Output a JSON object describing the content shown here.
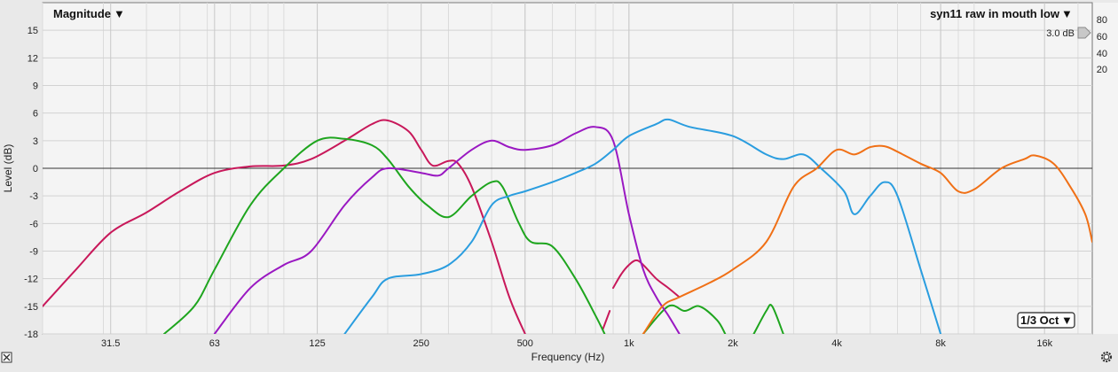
{
  "chart_data": {
    "type": "line",
    "title_left": "Magnitude",
    "title_right": "syn11 raw in mouth low",
    "offset_label": "3.0 dB",
    "smoothing_label": "1/3 Oct",
    "xlabel": "Frequency (Hz)",
    "ylabel": "Level (dB)",
    "x_scale": "log",
    "xlim": [
      20,
      22000
    ],
    "ylim": [
      -18,
      18
    ],
    "grid": true,
    "x_ticks": [
      31.5,
      63,
      125,
      250,
      500,
      1000,
      2000,
      4000,
      8000,
      16000
    ],
    "x_tick_labels": [
      "31.5",
      "63",
      "125",
      "250",
      "500",
      "1k",
      "2k",
      "4k",
      "8k",
      "16k"
    ],
    "y_ticks": [
      15,
      12,
      9,
      6,
      3,
      0,
      -3,
      -6,
      -9,
      -12,
      -15,
      -18
    ],
    "right_scale_ticks": [
      "80",
      "60",
      "40",
      "20"
    ],
    "colors": {
      "crimson": "#c8185a",
      "green": "#1ea51e",
      "purple": "#9a18c2",
      "blue": "#2a9ddf",
      "orange": "#f07016"
    },
    "series": [
      {
        "color_key": "crimson",
        "points": [
          [
            20,
            -15
          ],
          [
            25,
            -11
          ],
          [
            31.5,
            -7
          ],
          [
            40,
            -4.8
          ],
          [
            50,
            -2.5
          ],
          [
            63,
            -0.5
          ],
          [
            80,
            0.2
          ],
          [
            100,
            0.3
          ],
          [
            120,
            1
          ],
          [
            150,
            3
          ],
          [
            180,
            4.8
          ],
          [
            200,
            5.2
          ],
          [
            230,
            4
          ],
          [
            250,
            2
          ],
          [
            270,
            0.3
          ],
          [
            300,
            0.8
          ],
          [
            320,
            0.5
          ],
          [
            350,
            -2
          ],
          [
            400,
            -8
          ],
          [
            450,
            -14
          ],
          [
            500,
            -18
          ]
        ]
      },
      {
        "color_key": "crimson",
        "points": [
          [
            900,
            -13
          ],
          [
            950,
            -11.5
          ],
          [
            1000,
            -10.5
          ],
          [
            1050,
            -10
          ],
          [
            1100,
            -10.5
          ],
          [
            1200,
            -12
          ],
          [
            1300,
            -13
          ],
          [
            1400,
            -14
          ]
        ]
      },
      {
        "color_key": "crimson",
        "points": [
          [
            840,
            -17.5
          ],
          [
            880,
            -15.5
          ]
        ]
      },
      {
        "color_key": "green",
        "points": [
          [
            45,
            -18
          ],
          [
            55,
            -15
          ],
          [
            63,
            -11
          ],
          [
            80,
            -4
          ],
          [
            100,
            0
          ],
          [
            125,
            3
          ],
          [
            150,
            3.2
          ],
          [
            180,
            2.5
          ],
          [
            200,
            1
          ],
          [
            230,
            -2
          ],
          [
            260,
            -4
          ],
          [
            300,
            -5.3
          ],
          [
            350,
            -3
          ],
          [
            400,
            -1.5
          ],
          [
            430,
            -2
          ],
          [
            480,
            -6
          ],
          [
            520,
            -8
          ],
          [
            600,
            -8.5
          ],
          [
            700,
            -12
          ],
          [
            800,
            -16
          ],
          [
            850,
            -18
          ]
        ]
      },
      {
        "color_key": "green",
        "points": [
          [
            1100,
            -18
          ],
          [
            1300,
            -15
          ],
          [
            1450,
            -15.5
          ],
          [
            1600,
            -15
          ],
          [
            1800,
            -16.5
          ],
          [
            1900,
            -18
          ]
        ]
      },
      {
        "color_key": "green",
        "points": [
          [
            2300,
            -18
          ],
          [
            2500,
            -15.5
          ],
          [
            2600,
            -15
          ],
          [
            2800,
            -18
          ]
        ]
      },
      {
        "color_key": "purple",
        "points": [
          [
            63,
            -18
          ],
          [
            80,
            -13
          ],
          [
            100,
            -10.5
          ],
          [
            120,
            -9
          ],
          [
            150,
            -4
          ],
          [
            180,
            -1
          ],
          [
            200,
            0
          ],
          [
            250,
            -0.5
          ],
          [
            280,
            -0.8
          ],
          [
            300,
            0
          ],
          [
            350,
            2
          ],
          [
            400,
            3
          ],
          [
            450,
            2.3
          ],
          [
            500,
            2
          ],
          [
            600,
            2.5
          ],
          [
            700,
            3.8
          ],
          [
            800,
            4.5
          ],
          [
            900,
            3
          ],
          [
            1000,
            -5
          ],
          [
            1100,
            -11
          ],
          [
            1200,
            -14
          ],
          [
            1300,
            -16
          ],
          [
            1400,
            -18
          ]
        ]
      },
      {
        "color_key": "blue",
        "points": [
          [
            150,
            -18
          ],
          [
            180,
            -14
          ],
          [
            200,
            -12
          ],
          [
            250,
            -11.5
          ],
          [
            300,
            -10.5
          ],
          [
            350,
            -8
          ],
          [
            400,
            -4
          ],
          [
            450,
            -3
          ],
          [
            500,
            -2.5
          ],
          [
            600,
            -1.5
          ],
          [
            700,
            -0.5
          ],
          [
            800,
            0.5
          ],
          [
            900,
            2
          ],
          [
            1000,
            3.5
          ],
          [
            1200,
            4.8
          ],
          [
            1300,
            5.3
          ],
          [
            1500,
            4.5
          ],
          [
            2000,
            3.5
          ],
          [
            2500,
            1.5
          ],
          [
            2800,
            1
          ],
          [
            3200,
            1.5
          ],
          [
            3600,
            0
          ],
          [
            4200,
            -2.5
          ],
          [
            4500,
            -5
          ],
          [
            5000,
            -3
          ],
          [
            5500,
            -1.5
          ],
          [
            6000,
            -3
          ],
          [
            7000,
            -11
          ],
          [
            8000,
            -18
          ]
        ]
      },
      {
        "color_key": "orange",
        "points": [
          [
            1100,
            -18
          ],
          [
            1250,
            -15
          ],
          [
            1400,
            -14
          ],
          [
            1700,
            -12.5
          ],
          [
            2000,
            -11
          ],
          [
            2500,
            -8
          ],
          [
            3000,
            -2
          ],
          [
            3500,
            0
          ],
          [
            4000,
            2
          ],
          [
            4500,
            1.5
          ],
          [
            5000,
            2.3
          ],
          [
            5500,
            2.4
          ],
          [
            6000,
            1.8
          ],
          [
            7000,
            0.5
          ],
          [
            8000,
            -0.5
          ],
          [
            9000,
            -2.5
          ],
          [
            10000,
            -2.3
          ],
          [
            12000,
            0
          ],
          [
            14000,
            1
          ],
          [
            15000,
            1.4
          ],
          [
            17000,
            0.5
          ],
          [
            19000,
            -2
          ],
          [
            21000,
            -5
          ],
          [
            22000,
            -8
          ]
        ]
      }
    ]
  }
}
